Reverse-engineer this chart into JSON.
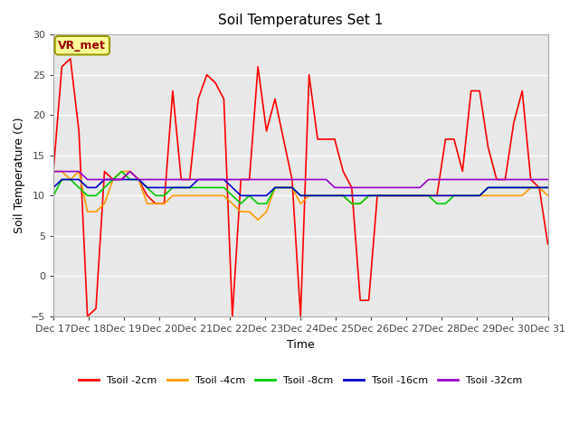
{
  "title": "Soil Temperatures Set 1",
  "xlabel": "Time",
  "ylabel": "Soil Temperature (C)",
  "ylim": [
    -5,
    30
  ],
  "background_color": "#ffffff",
  "plot_bg_color": "#e8e8e8",
  "grid_color": "#ffffff",
  "annotation_label": "VR_met",
  "annotation_bg": "#ffff99",
  "annotation_border": "#999900",
  "x_tick_labels": [
    "Dec 17",
    "Dec 18",
    "Dec 19",
    "Dec 20",
    "Dec 21",
    "Dec 22",
    "Dec 23",
    "Dec 24",
    "Dec 25",
    "Dec 26",
    "Dec 27",
    "Dec 28",
    "Dec 29",
    "Dec 30",
    "Dec 31"
  ],
  "series_colors": [
    "#ff0000",
    "#ff9900",
    "#00cc00",
    "#0000cc",
    "#9900cc"
  ],
  "series_labels": [
    "Tsoil -2cm",
    "Tsoil -4cm",
    "Tsoil -8cm",
    "Tsoil -16cm",
    "Tsoil -32cm"
  ],
  "tsoil_2cm": [
    13,
    26,
    27,
    18,
    -5,
    -4,
    13,
    12,
    12,
    13,
    12,
    10,
    9,
    9,
    23,
    12,
    12,
    22,
    25,
    24,
    22,
    -5,
    12,
    12,
    26,
    18,
    22,
    17,
    12,
    -5,
    25,
    17,
    17,
    17,
    13,
    11,
    -3,
    -3,
    10,
    10,
    10,
    10,
    10,
    10,
    10,
    10,
    17,
    17,
    13,
    23,
    23,
    16,
    12,
    12,
    19,
    23,
    12,
    11,
    4
  ],
  "tsoil_4cm": [
    13,
    13,
    12,
    13,
    8,
    8,
    9,
    12,
    13,
    13,
    12,
    9,
    9,
    9,
    10,
    10,
    10,
    10,
    10,
    10,
    10,
    9,
    8,
    8,
    7,
    8,
    11,
    11,
    11,
    9,
    10,
    10,
    10,
    10,
    10,
    9,
    9,
    10,
    10,
    10,
    10,
    10,
    10,
    10,
    10,
    10,
    10,
    10,
    10,
    10,
    10,
    10,
    10,
    10,
    10,
    10,
    11,
    11,
    10
  ],
  "tsoil_8cm": [
    10,
    12,
    12,
    11,
    10,
    10,
    11,
    12,
    13,
    12,
    12,
    11,
    10,
    10,
    11,
    11,
    11,
    11,
    11,
    11,
    11,
    10,
    9,
    10,
    9,
    9,
    11,
    11,
    11,
    10,
    10,
    10,
    10,
    10,
    10,
    9,
    9,
    10,
    10,
    10,
    10,
    10,
    10,
    10,
    10,
    9,
    9,
    10,
    10,
    10,
    10,
    11,
    11,
    11,
    11,
    11,
    11,
    11,
    11
  ],
  "tsoil_16cm": [
    11,
    12,
    12,
    12,
    11,
    11,
    12,
    12,
    12,
    12,
    12,
    11,
    11,
    11,
    11,
    11,
    11,
    12,
    12,
    12,
    12,
    11,
    10,
    10,
    10,
    10,
    11,
    11,
    11,
    10,
    10,
    10,
    10,
    10,
    10,
    10,
    10,
    10,
    10,
    10,
    10,
    10,
    10,
    10,
    10,
    10,
    10,
    10,
    10,
    10,
    10,
    11,
    11,
    11,
    11,
    11,
    11,
    11,
    11
  ],
  "tsoil_32cm": [
    13,
    13,
    13,
    13,
    12,
    12,
    12,
    12,
    12,
    13,
    12,
    12,
    12,
    12,
    12,
    12,
    12,
    12,
    12,
    12,
    12,
    12,
    12,
    12,
    12,
    12,
    12,
    12,
    12,
    12,
    12,
    12,
    12,
    11,
    11,
    11,
    11,
    11,
    11,
    11,
    11,
    11,
    11,
    11,
    12,
    12,
    12,
    12,
    12,
    12,
    12,
    12,
    12,
    12,
    12,
    12,
    12,
    12,
    12
  ]
}
